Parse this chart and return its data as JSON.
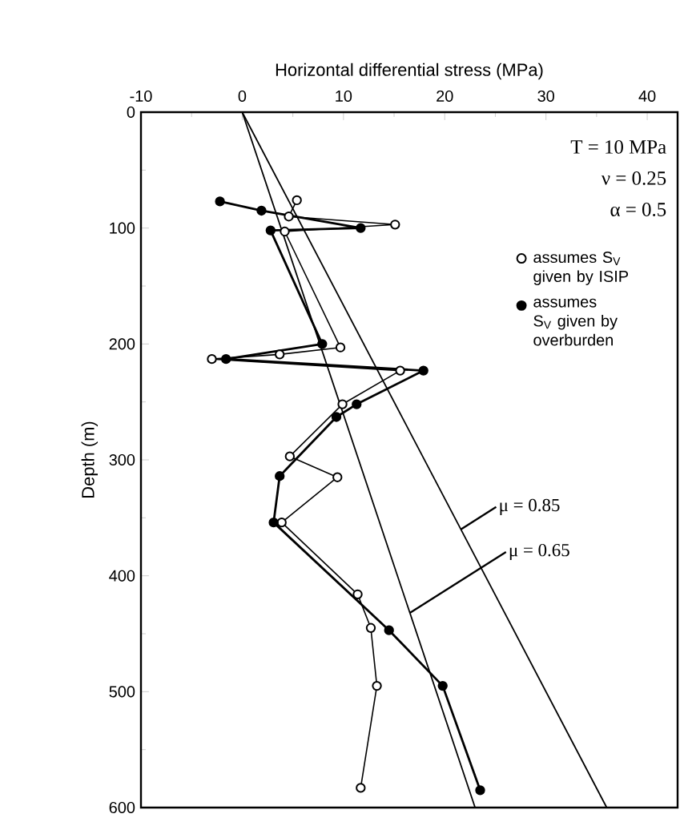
{
  "chart_data": {
    "type": "line",
    "xlabel": "Horizontal differential stress (MPa)",
    "ylabel": "Depth (m)",
    "xlim": [
      -10,
      43
    ],
    "xticks": [
      -10,
      0,
      10,
      20,
      30,
      40
    ],
    "ylim": [
      600,
      0
    ],
    "yticks": [
      0,
      100,
      200,
      300,
      400,
      500,
      600
    ],
    "grid": false,
    "legend": "top right",
    "marker": "circle",
    "annotations": [
      "T = 10 MPa",
      "ν = 0.25",
      "α = 0.5"
    ],
    "series": [
      {
        "name": "assumes S$_{V}$ given by ISIP",
        "color": "#000000",
        "x": [
          5.4,
          4.6,
          15.1,
          4.2,
          9.7,
          3.7,
          -3.0,
          15.6,
          9.9,
          4.7,
          9.4,
          3.9,
          11.4,
          12.7,
          13.3,
          11.7
        ],
        "values": [
          76,
          90,
          97,
          103,
          203,
          209,
          213,
          223,
          252,
          297,
          315,
          354,
          416,
          445,
          495,
          583
        ]
      },
      {
        "name": "assumes S$_{V}$ given by overburden",
        "color": "#000000",
        "x": [
          -2.2,
          1.9,
          11.7,
          2.8,
          7.9,
          -1.6,
          17.9,
          11.3,
          9.3,
          3.7,
          3.1,
          14.5,
          19.8,
          23.5
        ],
        "values": [
          77,
          85,
          100,
          102,
          200,
          213,
          223,
          252,
          263,
          314,
          354,
          447,
          495,
          585
        ]
      },
      {
        "name": "μ = 0.85",
        "type": "line",
        "marker": "none",
        "color": "#000000",
        "x": [
          0,
          36
        ],
        "values": [
          0,
          600
        ]
      },
      {
        "name": "μ = 0.65",
        "type": "line",
        "marker": "none",
        "color": "#000000",
        "x": [
          0,
          23
        ],
        "values": [
          0,
          600
        ]
      }
    ]
  }
}
